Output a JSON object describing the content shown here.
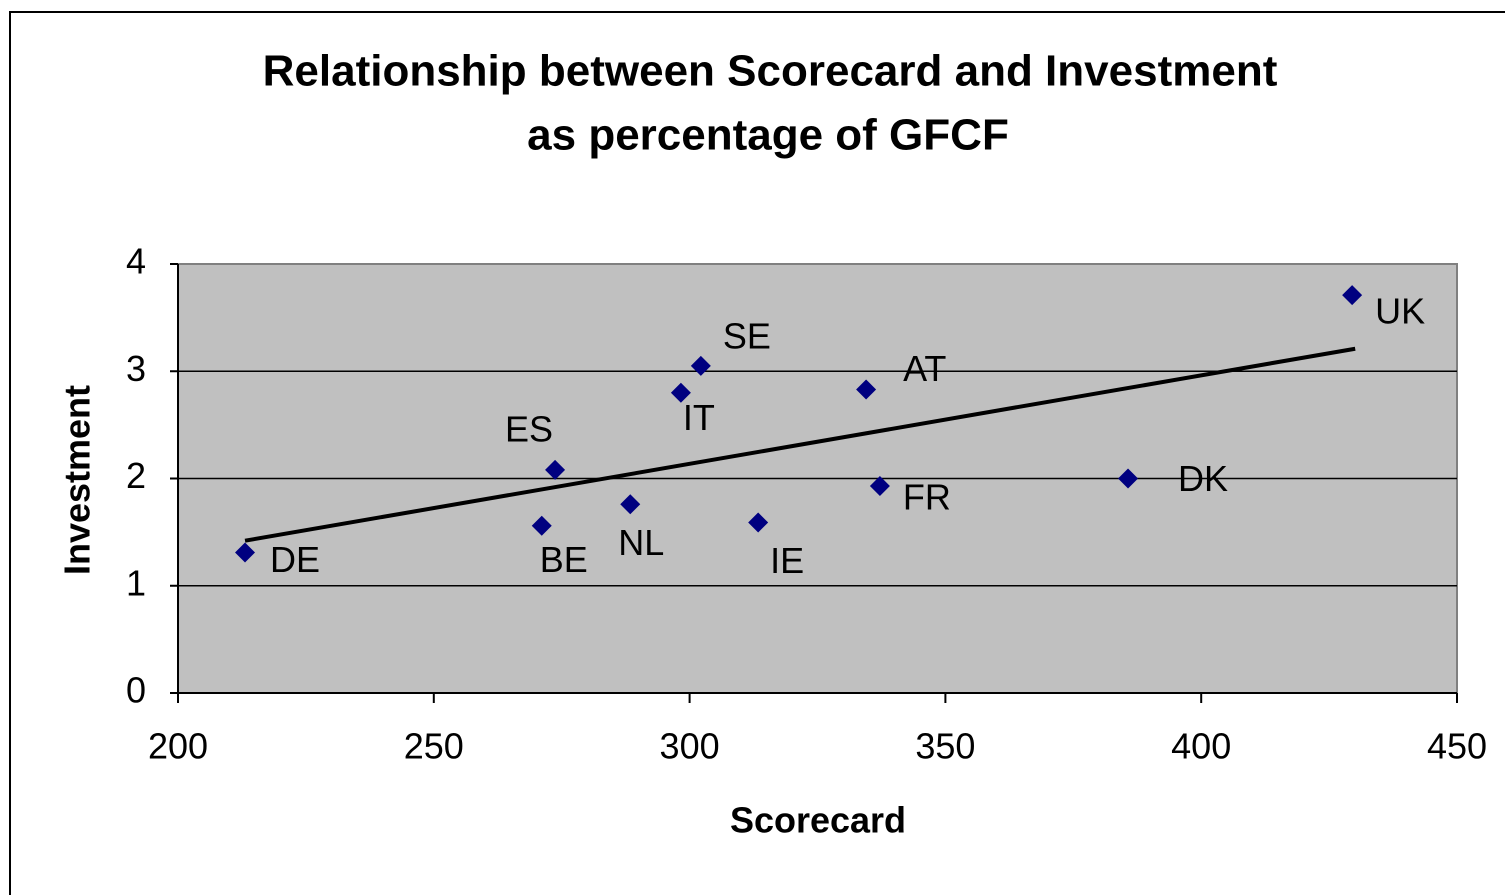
{
  "chart_data": {
    "type": "scatter",
    "title": [
      "Relationship between Scorecard and Investment",
      "as percentage  of GFCF"
    ],
    "x_label": "Scorecard",
    "y_label": "Investment",
    "series": [
      {
        "color": "#000080",
        "labels": [
          "DE",
          "BE",
          "ES",
          "NL",
          "IT",
          "SE",
          "IE",
          "AT",
          "FR",
          "DK",
          "UK"
        ],
        "x": [
          213.1,
          271.1,
          273.7,
          288.4,
          298.3,
          302.2,
          313.4,
          334.5,
          337.2,
          385.7,
          429.5
        ],
        "values": [
          1.31,
          1.56,
          2.08,
          1.76,
          2.8,
          3.05,
          1.59,
          2.83,
          1.93,
          2.0,
          3.71
        ]
      }
    ],
    "trendline": {
      "color": "#000000",
      "x": [
        213.1,
        430.1
      ],
      "values": [
        1.42,
        3.21
      ]
    },
    "xlim": [
      200,
      450
    ],
    "xticks": [
      200,
      250,
      300,
      350,
      400,
      450
    ],
    "ylim": [
      0,
      4
    ],
    "yticks": [
      0,
      1,
      2,
      3,
      4
    ],
    "grid": true
  }
}
